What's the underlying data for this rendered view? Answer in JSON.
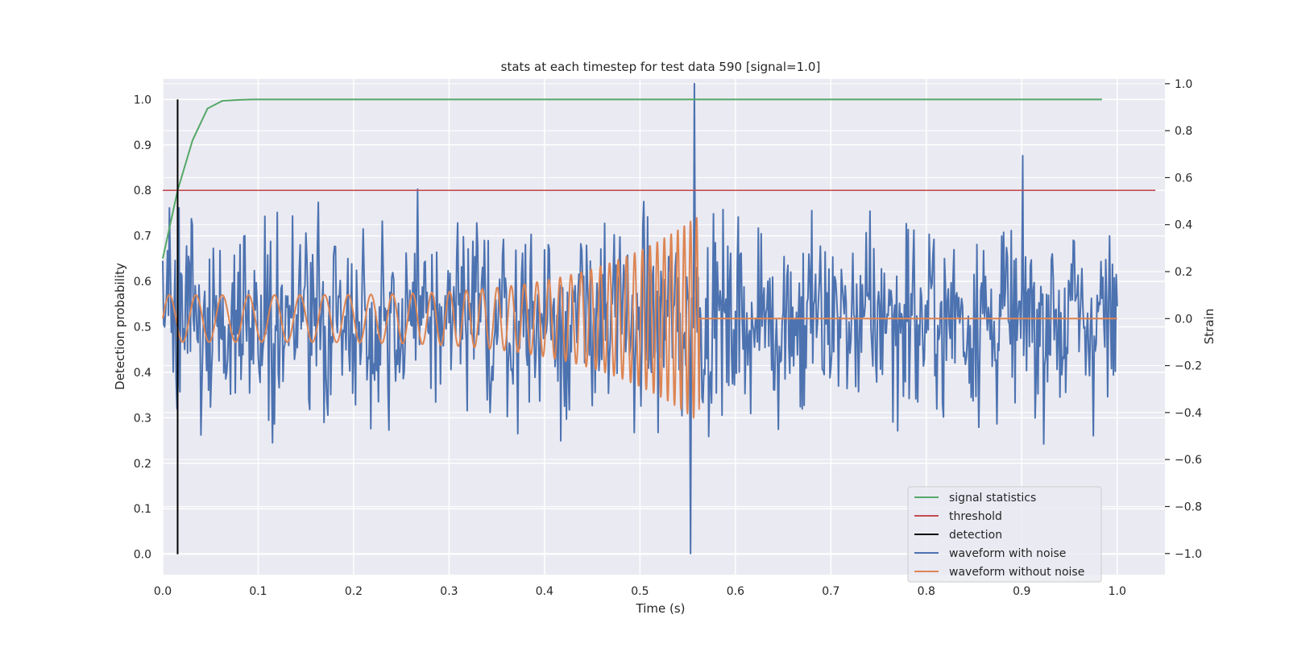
{
  "chart_data": {
    "type": "line",
    "title": "stats at each timestep for test data 590 [signal=1.0]",
    "xlabel": "Time (s)",
    "ylabel": "Detection probability",
    "y2label": "Strain",
    "xlim": [
      0.0,
      1.05
    ],
    "ylim": [
      -0.045,
      1.045
    ],
    "y2lim": [
      -1.09,
      1.02
    ],
    "xticks": [
      "0.0",
      "0.1",
      "0.2",
      "0.3",
      "0.4",
      "0.5",
      "0.6",
      "0.7",
      "0.8",
      "0.9",
      "1.0"
    ],
    "yticks": [
      "0.0",
      "0.1",
      "0.2",
      "0.3",
      "0.4",
      "0.5",
      "0.6",
      "0.7",
      "0.8",
      "0.9",
      "1.0"
    ],
    "y2ticks": [
      "−1.0",
      "−0.8",
      "−0.6",
      "−0.4",
      "−0.2",
      "0.0",
      "0.2",
      "0.4",
      "0.6",
      "0.8",
      "1.0"
    ],
    "grid": true,
    "legend_position": "lower-right",
    "colors": {
      "signal_statistics": "#55a868",
      "threshold": "#c44e52",
      "detection": "#000000",
      "waveform_with_noise": "#4c72b0",
      "waveform_without_noise": "#dd8452",
      "plot_background": "#eaeaf2",
      "grid": "#ffffff"
    },
    "series": [
      {
        "name": "signal statistics",
        "axis": "left",
        "x": [
          0.0,
          0.0156,
          0.0312,
          0.0469,
          0.0625,
          0.0781,
          0.0938,
          0.25,
          0.5,
          0.75,
          0.984
        ],
        "y": [
          0.65,
          0.8,
          0.91,
          0.98,
          0.997,
          0.999,
          1.0,
          1.0,
          1.0,
          1.0,
          1.0
        ]
      },
      {
        "name": "threshold",
        "axis": "left",
        "x": [
          0.0,
          1.04
        ],
        "y": [
          0.8,
          0.8
        ]
      },
      {
        "name": "detection",
        "axis": "left",
        "x": [
          0.0156,
          0.0156
        ],
        "y": [
          0.0,
          1.0
        ]
      },
      {
        "name": "waveform with noise",
        "axis": "right",
        "x_range": [
          0.0,
          1.0
        ],
        "n_points": 1000,
        "y_range": [
          -1.0,
          1.0
        ],
        "peak": {
          "x": 0.557,
          "y": 1.0
        },
        "trough": {
          "x": 0.553,
          "y": -1.0
        }
      },
      {
        "name": "waveform without noise",
        "axis": "right",
        "chirp": {
          "t_start": 0.0,
          "t_merger": 0.562,
          "f_start": 36,
          "f_end": 160
        },
        "amplitude_start": 0.1,
        "amplitude_peak": 0.44,
        "y_after_merger": 0.0
      }
    ]
  }
}
